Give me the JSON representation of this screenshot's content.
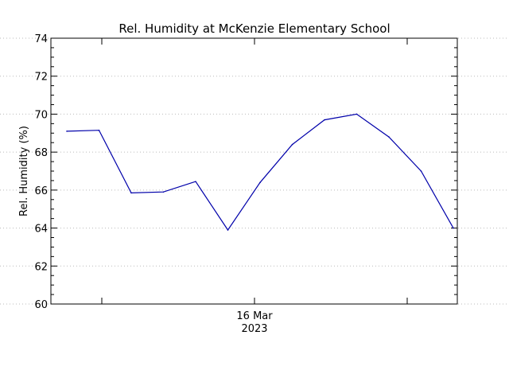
{
  "chart_data": {
    "type": "line",
    "title": "Rel. Humidity at McKenzie Elementary School",
    "ylabel": "Rel. Humidity (%)",
    "xlabel": "",
    "x_tick_label_lines": [
      "16 Mar",
      "2023"
    ],
    "ylim": [
      60,
      74
    ],
    "y_ticks": [
      "60",
      "62",
      "64",
      "66",
      "68",
      "70",
      "72",
      "74"
    ],
    "grid": "horizontal dotted",
    "series": [
      {
        "color": "#0000aa",
        "values": [
          69.1,
          69.15,
          65.85,
          65.9,
          66.45,
          63.9,
          66.4,
          68.4,
          69.7,
          70.0,
          68.8,
          67.0,
          64.0
        ]
      }
    ]
  }
}
